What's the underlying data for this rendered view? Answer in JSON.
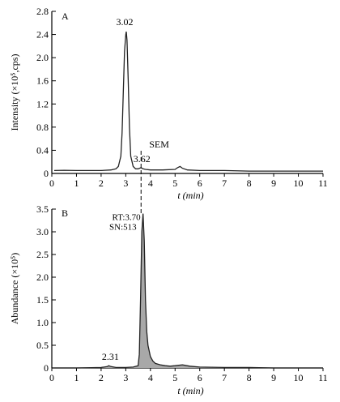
{
  "chart_data": [
    {
      "type": "line",
      "panel_label": "A",
      "ylabel": "Intensity (×10⁵,cps)",
      "xlabel": "t (min)",
      "xlim": [
        0,
        11
      ],
      "ylim": [
        0,
        2.8
      ],
      "x_ticks": [
        0,
        1,
        2,
        3,
        4,
        5,
        6,
        7,
        8,
        9,
        10,
        11
      ],
      "y_ticks": [
        0,
        0.4,
        0.8,
        1.2,
        1.6,
        2.0,
        2.4,
        2.8
      ],
      "y_tick_labels": [
        "0",
        "0.4",
        "0.8",
        "1.2",
        "1.6",
        "2.0",
        "2.4",
        "2.8"
      ],
      "series": [
        {
          "x": [
            0.1,
            0.5,
            1.0,
            1.5,
            2.0,
            2.4,
            2.6,
            2.7,
            2.8,
            2.85,
            2.9,
            2.95,
            3.0,
            3.02,
            3.05,
            3.1,
            3.15,
            3.2,
            3.3,
            3.4,
            3.5,
            3.62,
            3.7,
            3.8,
            4.0,
            4.5,
            5.0,
            5.1,
            5.2,
            5.3,
            5.5,
            6.0,
            7.0,
            8.0,
            9.0,
            10.0,
            11.0
          ],
          "y": [
            0.05,
            0.055,
            0.05,
            0.05,
            0.05,
            0.06,
            0.08,
            0.12,
            0.3,
            0.7,
            1.4,
            2.1,
            2.4,
            2.45,
            2.3,
            1.6,
            0.8,
            0.3,
            0.12,
            0.08,
            0.08,
            0.1,
            0.08,
            0.07,
            0.06,
            0.06,
            0.07,
            0.1,
            0.12,
            0.09,
            0.06,
            0.05,
            0.05,
            0.04,
            0.04,
            0.04,
            0.04
          ]
        }
      ],
      "annotations": [
        {
          "text": "3.02",
          "x": 3.02,
          "y": 2.45
        },
        {
          "text": "3.62",
          "x": 3.62,
          "y": 0.1
        },
        {
          "text": "SEM",
          "x": 3.62,
          "y": 0.1
        }
      ]
    },
    {
      "type": "area",
      "panel_label": "B",
      "ylabel": "Abundance (×10⁵)",
      "xlabel": "t (min)",
      "xlim": [
        0,
        11
      ],
      "ylim": [
        0,
        3.5
      ],
      "x_ticks": [
        0,
        1,
        2,
        3,
        4,
        5,
        6,
        7,
        8,
        9,
        10,
        11
      ],
      "y_ticks": [
        0,
        0.5,
        1.0,
        1.5,
        2.0,
        2.5,
        3.0,
        3.5
      ],
      "y_tick_labels": [
        "0",
        "0.5",
        "1.0",
        "1.5",
        "2.0",
        "2.5",
        "3.0",
        "3.5"
      ],
      "series": [
        {
          "x": [
            0.1,
            1.0,
            2.0,
            2.25,
            2.31,
            2.4,
            2.6,
            3.0,
            3.3,
            3.5,
            3.55,
            3.6,
            3.65,
            3.7,
            3.75,
            3.8,
            3.85,
            3.9,
            4.0,
            4.1,
            4.2,
            4.4,
            4.6,
            4.8,
            5.0,
            5.3,
            5.6,
            6.0,
            7.0,
            8.0,
            9.0,
            10.0,
            11.0
          ],
          "y": [
            0.0,
            0.0,
            0.01,
            0.03,
            0.05,
            0.03,
            0.01,
            0.01,
            0.02,
            0.05,
            0.3,
            1.5,
            3.0,
            3.4,
            2.8,
            1.5,
            0.8,
            0.5,
            0.25,
            0.15,
            0.1,
            0.07,
            0.05,
            0.04,
            0.05,
            0.07,
            0.04,
            0.02,
            0.01,
            0.01,
            0.0,
            0.0,
            0.0
          ]
        }
      ],
      "annotations": [
        {
          "text": "RT:3.70",
          "x": 3.7,
          "y": 3.4
        },
        {
          "text": "SN:513",
          "x": 3.7,
          "y": 3.4
        },
        {
          "text": "2.31",
          "x": 2.31,
          "y": 0.05
        }
      ]
    }
  ]
}
